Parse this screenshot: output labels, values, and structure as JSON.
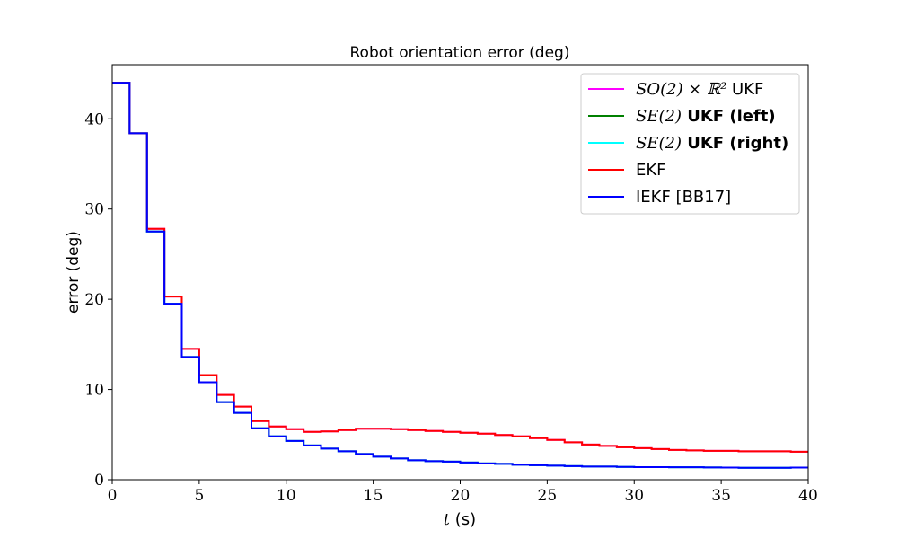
{
  "chart_data": {
    "type": "line",
    "title": "Robot orientation error (deg)",
    "xlabel": "t (s)",
    "ylabel": "error (deg)",
    "xlim": [
      0,
      40
    ],
    "ylim": [
      0,
      46
    ],
    "xticks": [
      0,
      5,
      10,
      15,
      20,
      25,
      30,
      35,
      40
    ],
    "yticks": [
      0,
      10,
      20,
      30,
      40
    ],
    "grid": false,
    "legend_position": "upper right",
    "step": "post",
    "x": [
      0,
      1,
      2,
      3,
      4,
      5,
      6,
      7,
      8,
      9,
      10,
      11,
      12,
      13,
      14,
      15,
      16,
      17,
      18,
      19,
      20,
      21,
      22,
      23,
      24,
      25,
      26,
      27,
      28,
      29,
      30,
      31,
      32,
      33,
      34,
      35,
      36,
      37,
      38,
      39,
      40
    ],
    "series": [
      {
        "name": "SO(2) × ℝ² UKF",
        "label_math": "SO(2) × ℝ²",
        "label_text": " UKF",
        "color": "#ff00ff",
        "values": [
          44.0,
          38.4,
          27.8,
          20.3,
          14.5,
          11.6,
          9.4,
          8.1,
          6.5,
          5.9,
          5.6,
          5.3,
          5.35,
          5.5,
          5.65,
          5.65,
          5.6,
          5.5,
          5.4,
          5.3,
          5.2,
          5.1,
          4.95,
          4.8,
          4.6,
          4.4,
          4.15,
          3.9,
          3.75,
          3.6,
          3.5,
          3.4,
          3.3,
          3.25,
          3.2,
          3.2,
          3.15,
          3.15,
          3.15,
          3.1,
          3.1
        ]
      },
      {
        "name": "SE(2) UKF (left)",
        "label_math": "SE(2)",
        "label_text": " UKF (left)",
        "color": "#008000",
        "values": [
          44.0,
          38.4,
          27.5,
          19.5,
          13.6,
          10.8,
          8.6,
          7.4,
          5.7,
          4.8,
          4.3,
          3.8,
          3.45,
          3.15,
          2.85,
          2.55,
          2.35,
          2.15,
          2.05,
          2.0,
          1.9,
          1.8,
          1.75,
          1.65,
          1.6,
          1.55,
          1.5,
          1.45,
          1.45,
          1.42,
          1.4,
          1.4,
          1.38,
          1.38,
          1.36,
          1.34,
          1.32,
          1.32,
          1.32,
          1.35,
          1.35
        ]
      },
      {
        "name": "SE(2) UKF (right)",
        "label_math": "SE(2)",
        "label_text": " UKF (right)",
        "color": "#00ffff",
        "values": [
          44.0,
          38.4,
          27.5,
          19.5,
          13.6,
          10.8,
          8.6,
          7.4,
          5.7,
          4.8,
          4.3,
          3.8,
          3.45,
          3.15,
          2.85,
          2.55,
          2.35,
          2.15,
          2.05,
          2.0,
          1.9,
          1.8,
          1.75,
          1.65,
          1.6,
          1.55,
          1.5,
          1.45,
          1.45,
          1.42,
          1.4,
          1.4,
          1.38,
          1.38,
          1.36,
          1.34,
          1.32,
          1.32,
          1.32,
          1.35,
          1.35
        ]
      },
      {
        "name": "EKF",
        "label_math": "",
        "label_text": "EKF",
        "color": "#ff0000",
        "values": [
          44.0,
          38.4,
          27.8,
          20.3,
          14.5,
          11.6,
          9.4,
          8.1,
          6.5,
          5.9,
          5.6,
          5.3,
          5.35,
          5.5,
          5.65,
          5.65,
          5.6,
          5.5,
          5.4,
          5.3,
          5.2,
          5.1,
          4.95,
          4.8,
          4.6,
          4.4,
          4.15,
          3.9,
          3.75,
          3.6,
          3.5,
          3.4,
          3.3,
          3.25,
          3.2,
          3.2,
          3.15,
          3.15,
          3.15,
          3.1,
          3.1
        ]
      },
      {
        "name": "IEKF [BB17]",
        "label_math": "",
        "label_text": "IEKF [BB17]",
        "color": "#0000ff",
        "values": [
          44.0,
          38.4,
          27.5,
          19.5,
          13.6,
          10.8,
          8.6,
          7.4,
          5.7,
          4.8,
          4.3,
          3.8,
          3.45,
          3.15,
          2.85,
          2.55,
          2.35,
          2.15,
          2.05,
          2.0,
          1.9,
          1.8,
          1.75,
          1.65,
          1.6,
          1.55,
          1.5,
          1.45,
          1.45,
          1.42,
          1.4,
          1.4,
          1.38,
          1.38,
          1.36,
          1.34,
          1.32,
          1.32,
          1.32,
          1.35,
          1.35
        ]
      }
    ]
  }
}
